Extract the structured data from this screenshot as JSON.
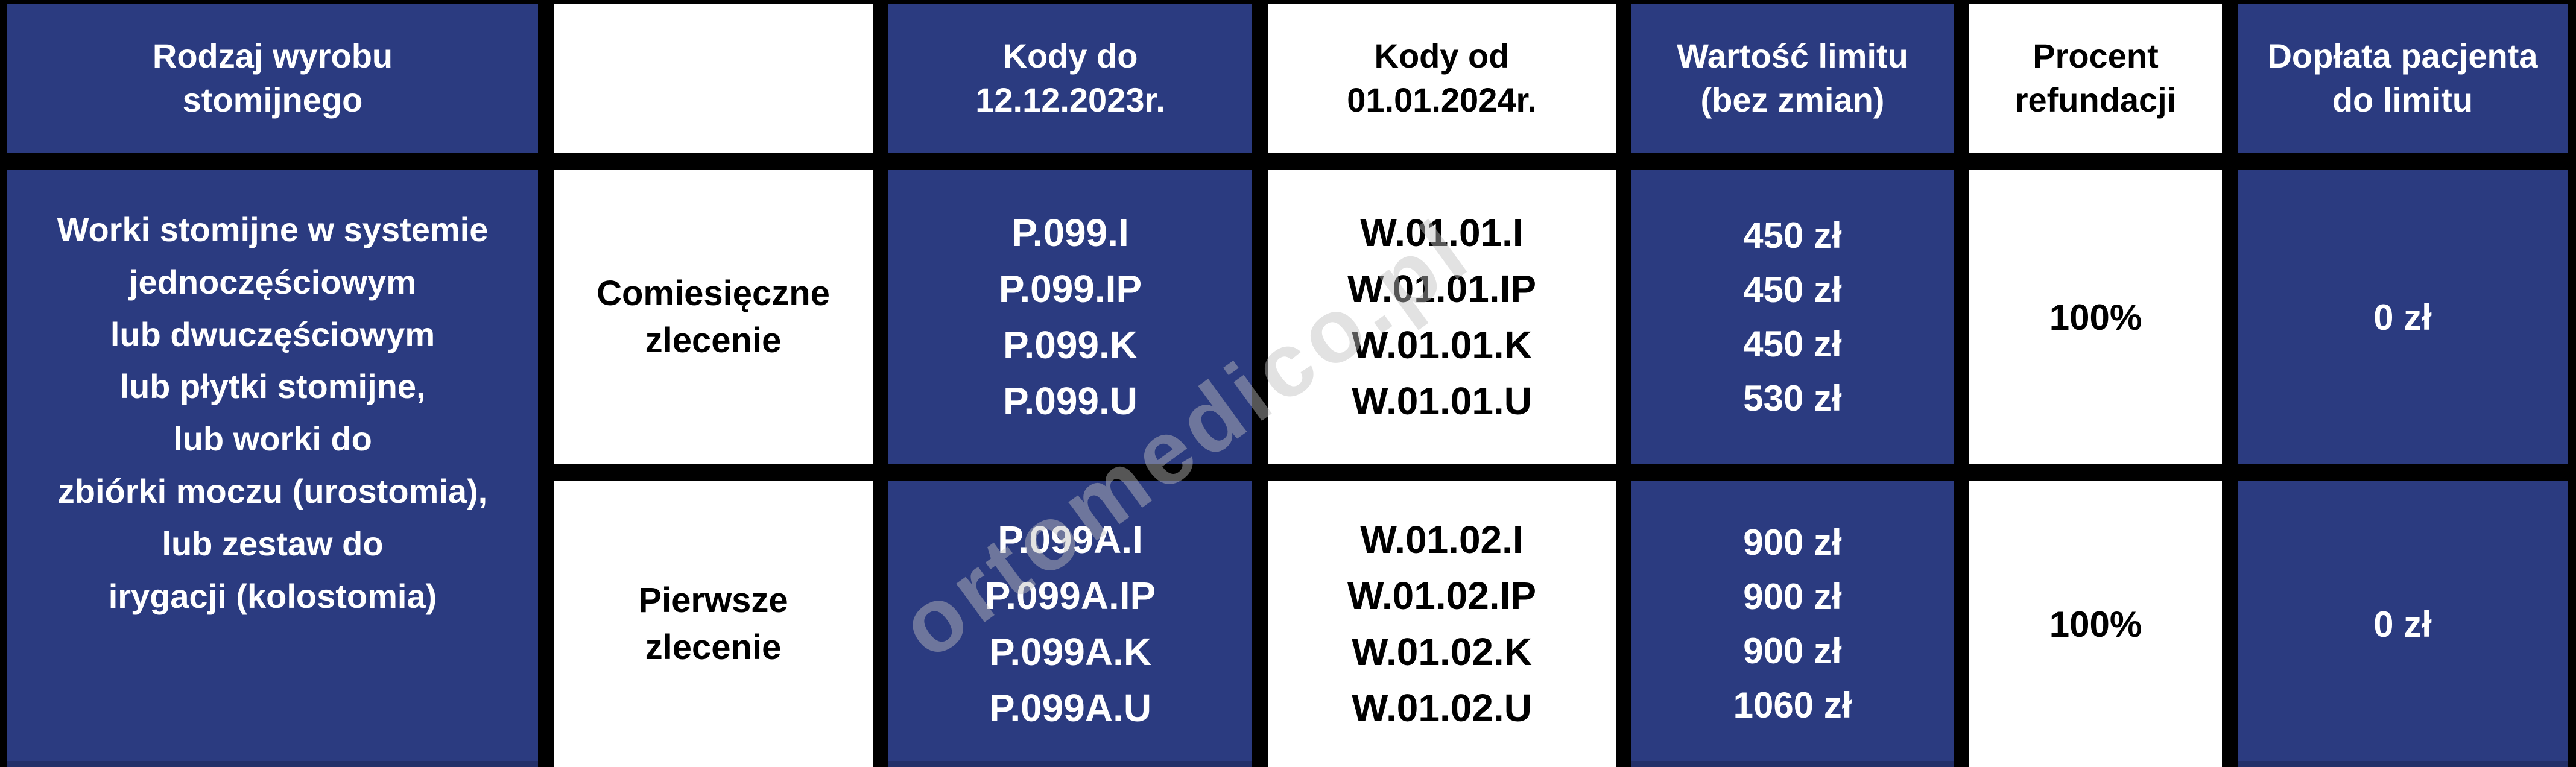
{
  "meta": {
    "description": "Tabela refundacji wyrobów stomijnych (infografika)",
    "language": "pl"
  },
  "colors": {
    "navy": "#2b3b80",
    "navy_bottom_edge": "#233069",
    "border": "#000000",
    "white": "#ffffff",
    "watermark_gray": "#bfbfbf"
  },
  "watermark": {
    "text": "ortomedico.pl"
  },
  "table": {
    "header": {
      "product_type": "Rodzaj wyrobu\nstomijnego",
      "order_type": "",
      "codes_until": "Kody do\n12.12.2023r.",
      "codes_from": "Kody od\n01.01.2024r.",
      "limit_value": "Wartość limitu\n(bez zmian)",
      "refund_percent": "Procent\nrefundacji",
      "patient_copay": "Dopłata pacjenta\ndo limitu"
    },
    "product": {
      "name": "Worki stomijne w systemie\njednoczęściowym\nlub dwuczęściowym\nlub płytki stomijne,\nlub worki do\nzbiórki moczu (urostomia),\nlub zestaw do\nirygacji (kolostomia)"
    },
    "rows": [
      {
        "order_type": "Comiesięczne\nzlecenie",
        "codes_until": "P.099.I\nP.099.IP\nP.099.K\nP.099.U",
        "codes_from": "W.01.01.I\nW.01.01.IP\nW.01.01.K\nW.01.01.U",
        "limit_value": "450 zł\n450 zł\n450 zł\n530 zł",
        "refund_percent": "100%",
        "patient_copay": "0 zł"
      },
      {
        "order_type": "Pierwsze\nzlecenie",
        "codes_until": "P.099A.I\nP.099A.IP\nP.099A.K\nP.099A.U",
        "codes_from": "W.01.02.I\nW.01.02.IP\nW.01.02.K\nW.01.02.U",
        "limit_value": "900 zł\n900 zł\n900 zł\n1060 zł",
        "refund_percent": "100%",
        "patient_copay": "0 zł"
      }
    ]
  },
  "chart_data": {
    "type": "table",
    "title": "Refundacja wyrobów stomijnych",
    "columns": [
      "Rodzaj wyrobu stomijnego",
      "",
      "Kody do 12.12.2023r.",
      "Kody od 01.01.2024r.",
      "Wartość limitu (bez zmian)",
      "Procent refundacji",
      "Dopłata pacjenta do limitu"
    ],
    "rows": [
      [
        "Worki stomijne w systemie jednoczęściowym lub dwuczęściowym lub płytki stomijne, lub worki do zbiórki moczu (urostomia), lub zestaw do irygacji (kolostomia)",
        "Comiesięczne zlecenie",
        "P.099.I | P.099.IP | P.099.K | P.099.U",
        "W.01.01.I | W.01.01.IP | W.01.01.K | W.01.01.U",
        "450 zł | 450 zł | 450 zł | 530 zł",
        "100%",
        "0 zł"
      ],
      [
        "Worki stomijne w systemie jednoczęściowym lub dwuczęściowym lub płytki stomijne, lub worki do zbiórki moczu (urostomia), lub zestaw do irygacji (kolostomia)",
        "Pierwsze zlecenie",
        "P.099A.I | P.099A.IP | P.099A.K | P.099A.U",
        "W.01.02.I | W.01.02.IP | W.01.02.K | W.01.02.U",
        "900 zł | 900 zł | 900 zł | 1060 zł",
        "100%",
        "0 zł"
      ]
    ]
  }
}
